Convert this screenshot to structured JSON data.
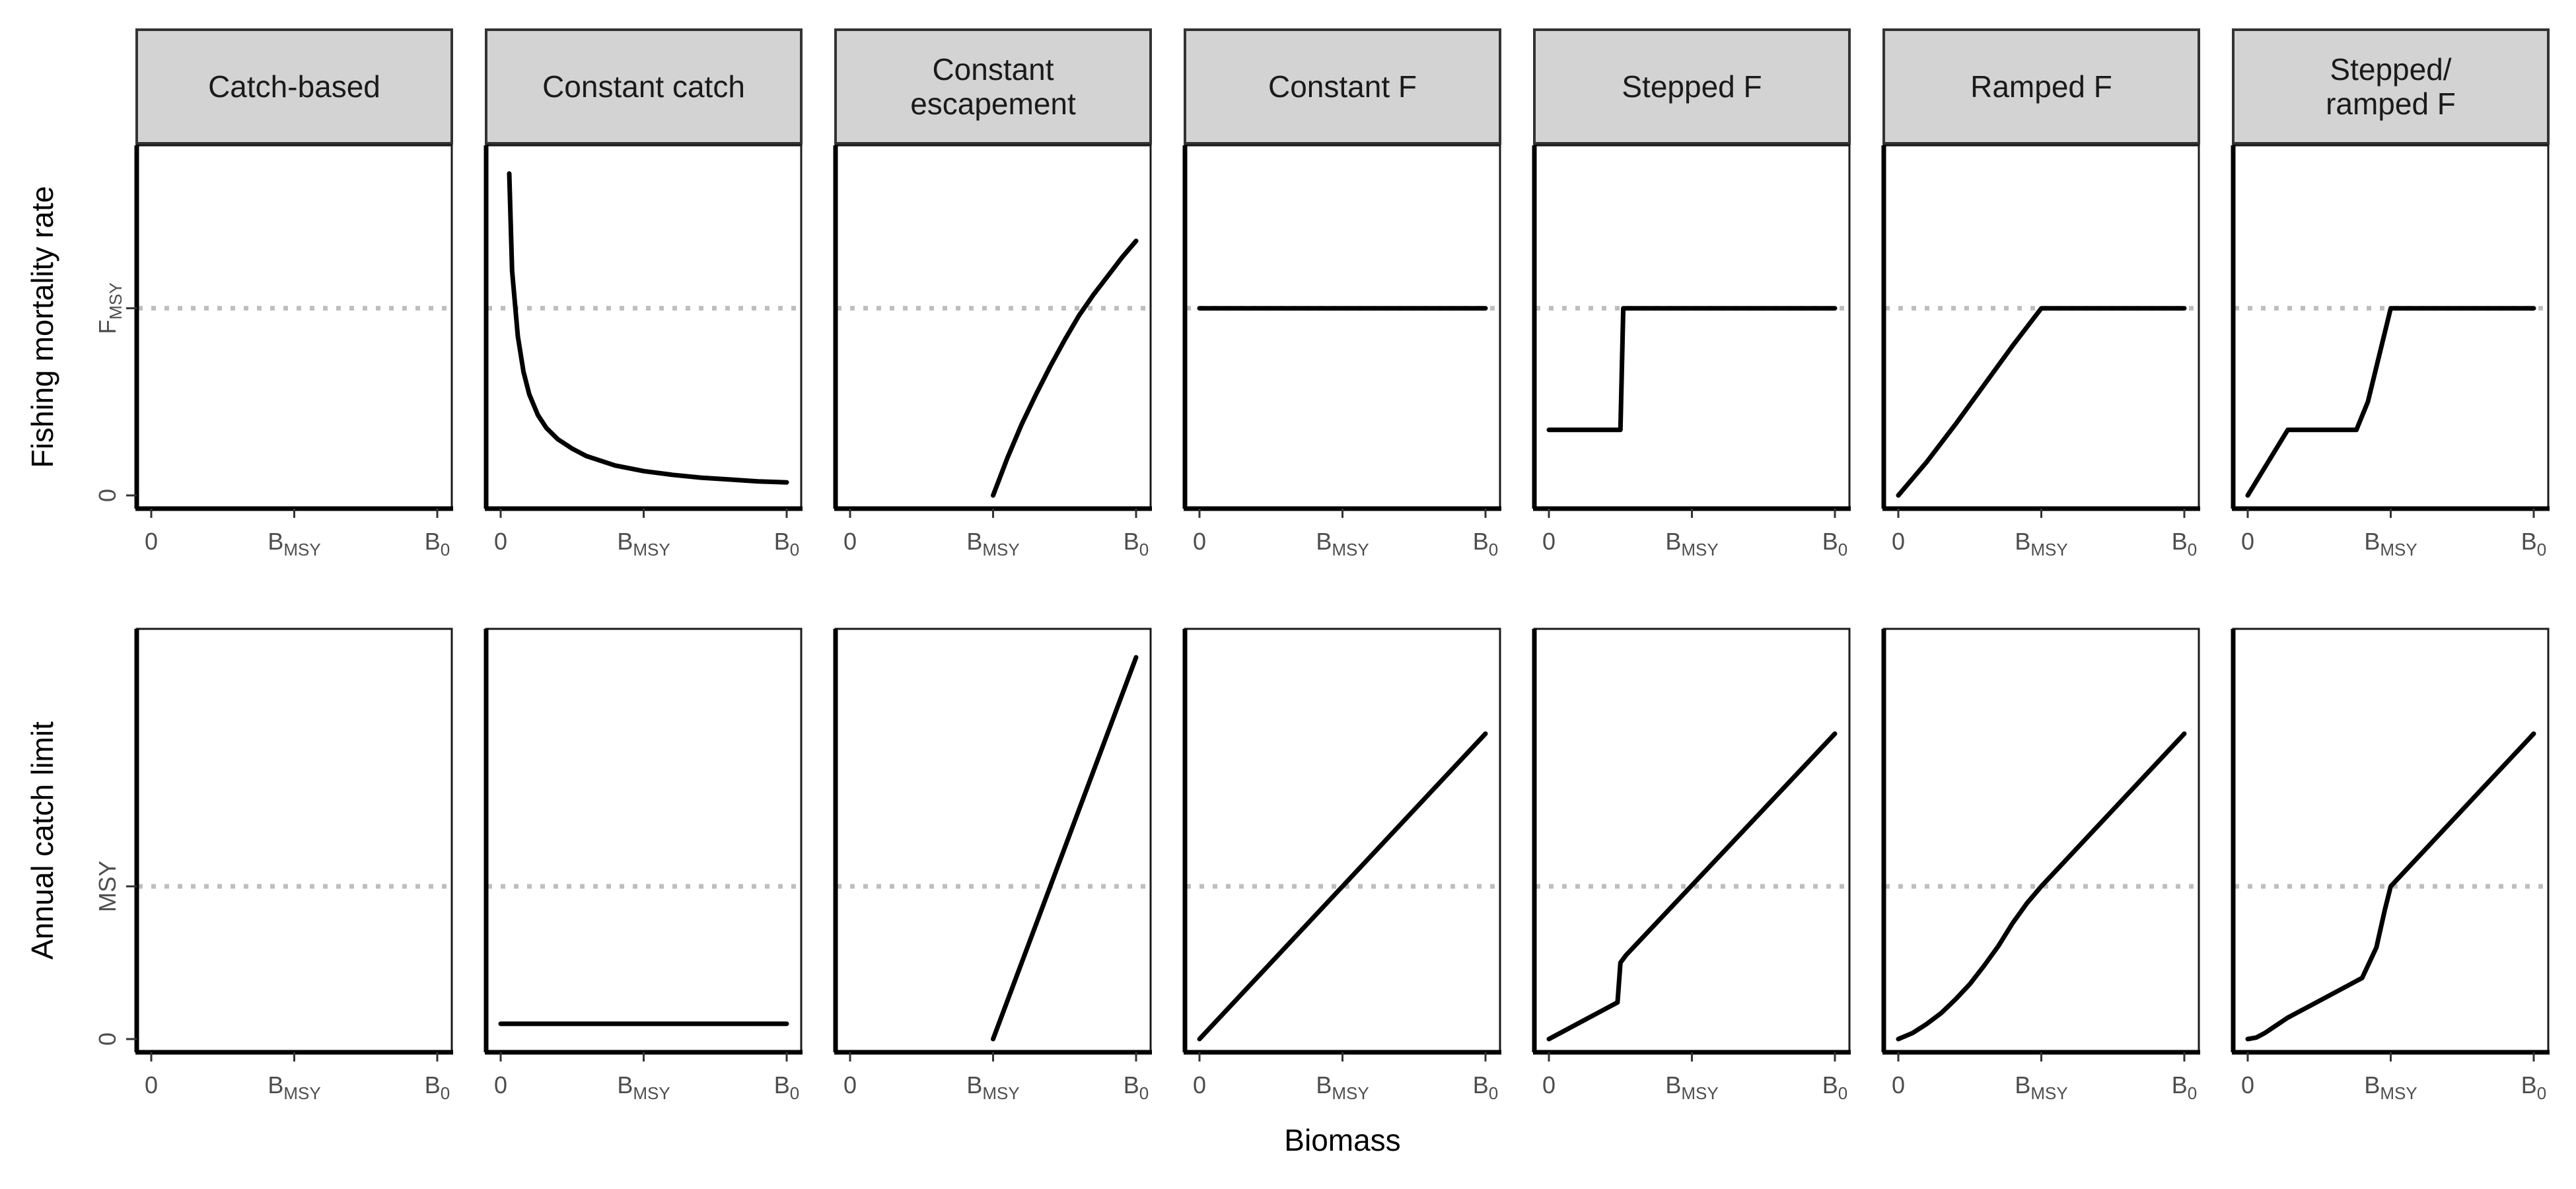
{
  "panels": [
    "Catch-based",
    "Constant catch",
    "Constant escapement",
    "Constant F",
    "Stepped F",
    "Ramped F",
    "Stepped/ ramped F"
  ],
  "panel_label_lines": [
    [
      "Catch-based"
    ],
    [
      "Constant catch"
    ],
    [
      "Constant",
      "escapement"
    ],
    [
      "Constant F"
    ],
    [
      "Stepped F"
    ],
    [
      "Ramped F"
    ],
    [
      "Stepped/",
      "ramped F"
    ]
  ],
  "axes": {
    "x_title": "Biomass",
    "x_ticks": [
      {
        "value": 0,
        "main": "0",
        "sub": ""
      },
      {
        "value": 0.5,
        "main": "B",
        "sub": "MSY"
      },
      {
        "value": 1,
        "main": "B",
        "sub": "0"
      }
    ],
    "top_y_title": "Fishing mortality rate",
    "top_y_ticks": [
      {
        "value": 0,
        "main": "0",
        "sub": ""
      },
      {
        "value": 1,
        "main": "F",
        "sub": "MSY"
      }
    ],
    "bottom_y_title": "Annual catch limit",
    "bottom_y_ticks": [
      {
        "value": 0,
        "main": "0",
        "sub": ""
      },
      {
        "value": 1,
        "main": "MSY",
        "sub": ""
      }
    ]
  },
  "colors": {
    "strip_fill": "#d3d3d3",
    "reference_line": "#bebebe",
    "curve": "#000000"
  },
  "chart_data": [
    {
      "type": "line",
      "row": "Fishing mortality rate",
      "x_scale": "Biomass (0 to B0, BMSY = 0.5)",
      "y_scale": "Fishing mortality (relative to FMSY)",
      "xlim": [
        0,
        1
      ],
      "ylim": [
        0,
        1.8
      ],
      "reference_line": {
        "y": 1,
        "style": "dotted"
      },
      "series": [
        {
          "panel": "Catch-based",
          "x": [],
          "y": []
        },
        {
          "panel": "Constant catch",
          "x": [
            0.03,
            0.04,
            0.06,
            0.08,
            0.1,
            0.13,
            0.16,
            0.2,
            0.25,
            0.3,
            0.4,
            0.5,
            0.6,
            0.7,
            0.8,
            0.9,
            1.0
          ],
          "y": [
            1.72,
            1.2,
            0.85,
            0.66,
            0.54,
            0.43,
            0.36,
            0.3,
            0.25,
            0.21,
            0.16,
            0.13,
            0.11,
            0.095,
            0.085,
            0.075,
            0.07
          ]
        },
        {
          "panel": "Constant escapement",
          "x": [
            0.5,
            0.55,
            0.6,
            0.65,
            0.7,
            0.75,
            0.8,
            0.85,
            0.9,
            0.95,
            1.0
          ],
          "y": [
            0.0,
            0.2,
            0.38,
            0.54,
            0.69,
            0.83,
            0.96,
            1.07,
            1.17,
            1.27,
            1.36
          ]
        },
        {
          "panel": "Constant F",
          "x": [
            0.0,
            1.0
          ],
          "y": [
            1,
            1
          ]
        },
        {
          "panel": "Stepped F",
          "x": [
            0.0,
            0.25,
            0.26,
            1.0
          ],
          "y": [
            0.35,
            0.35,
            1,
            1
          ]
        },
        {
          "panel": "Ramped F",
          "x": [
            0.0,
            0.1,
            0.2,
            0.3,
            0.4,
            0.5,
            1.0
          ],
          "y": [
            0.0,
            0.18,
            0.38,
            0.59,
            0.8,
            1,
            1
          ]
        },
        {
          "panel": "Stepped/ ramped F",
          "x": [
            0.0,
            0.14,
            0.38,
            0.42,
            0.46,
            0.5,
            1.0
          ],
          "y": [
            0.0,
            0.35,
            0.35,
            0.5,
            0.75,
            1,
            1
          ]
        }
      ]
    },
    {
      "type": "line",
      "row": "Annual catch limit",
      "x_scale": "Biomass (0 to B0, BMSY = 0.5)",
      "y_scale": "Annual catch limit (relative to MSY)",
      "xlim": [
        0,
        1
      ],
      "ylim": [
        0,
        2.6
      ],
      "reference_line": {
        "y": 1,
        "style": "dotted"
      },
      "series": [
        {
          "panel": "Catch-based",
          "x": [],
          "y": []
        },
        {
          "panel": "Constant catch",
          "x": [
            0.0,
            1.0
          ],
          "y": [
            0.1,
            0.1
          ]
        },
        {
          "panel": "Constant escapement",
          "x": [
            0.5,
            1.0
          ],
          "y": [
            0.0,
            2.5
          ]
        },
        {
          "panel": "Constant F",
          "x": [
            0.0,
            1.0
          ],
          "y": [
            0.0,
            2.0
          ]
        },
        {
          "panel": "Stepped F",
          "x": [
            0.0,
            0.24,
            0.25,
            0.27,
            1.0
          ],
          "y": [
            0.0,
            0.24,
            0.5,
            0.55,
            2.0
          ]
        },
        {
          "panel": "Ramped F",
          "x": [
            0.0,
            0.05,
            0.1,
            0.15,
            0.2,
            0.25,
            0.3,
            0.35,
            0.4,
            0.45,
            0.5,
            1.0
          ],
          "y": [
            0.0,
            0.04,
            0.1,
            0.17,
            0.26,
            0.36,
            0.48,
            0.61,
            0.76,
            0.89,
            1,
            2.0
          ]
        },
        {
          "panel": "Stepped/ ramped F",
          "x": [
            0.0,
            0.03,
            0.06,
            0.1,
            0.14,
            0.2,
            0.3,
            0.4,
            0.45,
            0.48,
            0.5,
            1.0
          ],
          "y": [
            0.0,
            0.01,
            0.04,
            0.09,
            0.14,
            0.2,
            0.3,
            0.4,
            0.6,
            0.85,
            1,
            2.0
          ]
        }
      ]
    }
  ]
}
